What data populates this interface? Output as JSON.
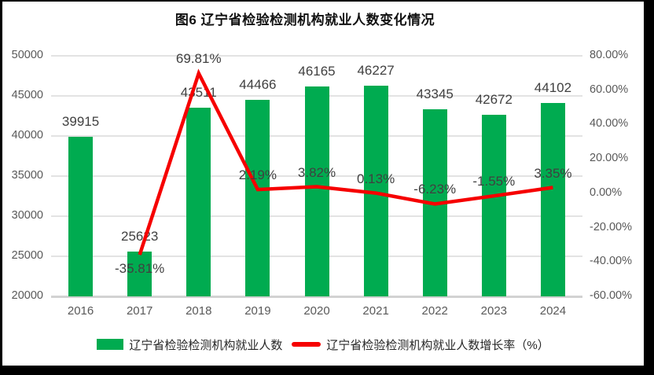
{
  "chart_data": {
    "type": "bar+line",
    "title": "图6 辽宁省检验检测机构就业人数变化情况",
    "categories": [
      "2016",
      "2017",
      "2018",
      "2019",
      "2020",
      "2021",
      "2022",
      "2023",
      "2024"
    ],
    "series": [
      {
        "name": "辽宁省检验检测机构就业人数",
        "type": "bar",
        "color": "#00AB50",
        "axis": "left",
        "values": [
          39915,
          25623,
          43511,
          44466,
          46165,
          46227,
          43345,
          42672,
          44102
        ],
        "labels": [
          "39915",
          "25623",
          "43511",
          "44466",
          "46165",
          "46227",
          "43345",
          "42672",
          "44102"
        ]
      },
      {
        "name": "辽宁省检验检测机构就业人数增长率（%）",
        "type": "line",
        "color": "#F60000",
        "axis": "right",
        "values": [
          null,
          -35.81,
          69.81,
          2.19,
          3.82,
          0.13,
          -6.23,
          -1.55,
          3.35
        ],
        "labels": [
          null,
          "-35.81%",
          "69.81%",
          "2.19%",
          "3.82%",
          "0.13%",
          "-6.23%",
          "-1.55%",
          "3.35%"
        ]
      }
    ],
    "left_axis": {
      "min": 20000,
      "max": 50000,
      "step": 5000,
      "tick_labels": [
        "20000",
        "25000",
        "30000",
        "35000",
        "40000",
        "45000",
        "50000"
      ]
    },
    "right_axis": {
      "min": -60,
      "max": 80,
      "step": 20,
      "tick_labels": [
        "-60.00%",
        "-40.00%",
        "-20.00%",
        "0.00%",
        "20.00%",
        "40.00%",
        "60.00%",
        "80.00%"
      ]
    },
    "grid": true,
    "legend_position": "bottom"
  }
}
